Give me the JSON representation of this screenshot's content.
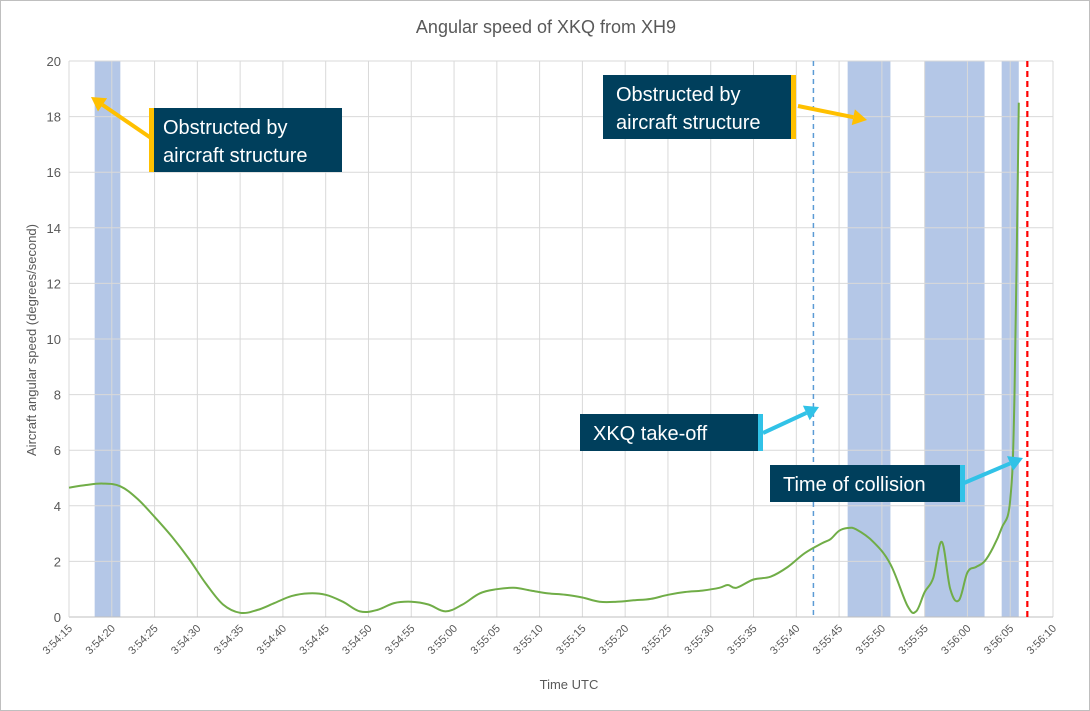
{
  "chart_data": {
    "type": "line",
    "title": "Angular speed of XKQ from XH9",
    "xlabel": "Time UTC",
    "ylabel": "Aircraft angular speed (degrees/second)",
    "x_ticks": [
      "3:54:15",
      "3:54:20",
      "3:54:25",
      "3:54:30",
      "3:54:35",
      "3:54:40",
      "3:54:45",
      "3:54:50",
      "3:54:55",
      "3:55:00",
      "3:55:05",
      "3:55:10",
      "3:55:15",
      "3:55:20",
      "3:55:25",
      "3:55:30",
      "3:55:35",
      "3:55:40",
      "3:55:45",
      "3:55:50",
      "3:55:55",
      "3:56:00",
      "3:56:05",
      "3:56:10"
    ],
    "xlim": [
      "3:54:15",
      "3:56:10"
    ],
    "ylim": [
      0,
      20
    ],
    "y_ticks": [
      0,
      2,
      4,
      6,
      8,
      10,
      12,
      14,
      16,
      18,
      20
    ],
    "grid": true,
    "series": [
      {
        "color": "#70ad47",
        "x": [
          "3:54:15",
          "3:54:17",
          "3:54:19",
          "3:54:21",
          "3:54:23",
          "3:54:25",
          "3:54:27",
          "3:54:29",
          "3:54:31",
          "3:54:33",
          "3:54:35",
          "3:54:37",
          "3:54:39",
          "3:54:41",
          "3:54:43",
          "3:54:45",
          "3:54:47",
          "3:54:49",
          "3:54:51",
          "3:54:53",
          "3:54:55",
          "3:54:57",
          "3:54:59",
          "3:55:01",
          "3:55:03",
          "3:55:05",
          "3:55:07",
          "3:55:09",
          "3:55:11",
          "3:55:13",
          "3:55:15",
          "3:55:17",
          "3:55:19",
          "3:55:21",
          "3:55:23",
          "3:55:25",
          "3:55:27",
          "3:55:29",
          "3:55:31",
          "3:55:32",
          "3:55:33",
          "3:55:35",
          "3:55:37",
          "3:55:39",
          "3:55:41",
          "3:55:43",
          "3:55:44",
          "3:55:45",
          "3:55:46",
          "3:55:47",
          "3:55:49",
          "3:55:51",
          "3:55:53",
          "3:55:54",
          "3:55:55",
          "3:55:56",
          "3:55:57",
          "3:55:58",
          "3:55:59",
          "3:56:00",
          "3:56:01",
          "3:56:02",
          "3:56:03",
          "3:56:04",
          "3:56:05",
          "3:56:05.5",
          "3:56:06"
        ],
        "y": [
          4.65,
          4.75,
          4.8,
          4.7,
          4.25,
          3.6,
          2.9,
          2.1,
          1.2,
          0.45,
          0.15,
          0.25,
          0.5,
          0.75,
          0.85,
          0.8,
          0.55,
          0.2,
          0.25,
          0.5,
          0.55,
          0.45,
          0.2,
          0.45,
          0.85,
          1.0,
          1.05,
          0.95,
          0.85,
          0.8,
          0.7,
          0.55,
          0.55,
          0.6,
          0.65,
          0.8,
          0.9,
          0.95,
          1.05,
          1.15,
          1.05,
          1.35,
          1.45,
          1.8,
          2.3,
          2.65,
          2.8,
          3.1,
          3.2,
          3.15,
          2.7,
          1.9,
          0.4,
          0.2,
          0.9,
          1.4,
          2.7,
          1.0,
          0.6,
          1.6,
          1.8,
          2.0,
          2.5,
          3.2,
          4.2,
          8.0,
          18.5
        ]
      }
    ],
    "bands": [
      {
        "label": "Obstructed by aircraft structure",
        "color": "#b4c7e7",
        "start": "3:54:18",
        "end": "3:54:21"
      },
      {
        "label": "Obstructed by aircraft structure",
        "color": "#b4c7e7",
        "start": "3:55:46",
        "end": "3:55:51"
      },
      {
        "label": "Obstructed by aircraft structure",
        "color": "#b4c7e7",
        "start": "3:55:55",
        "end": "3:56:02"
      },
      {
        "label": "Obstructed by aircraft structure",
        "color": "#b4c7e7",
        "start": "3:56:04",
        "end": "3:56:06"
      }
    ],
    "vlines": [
      {
        "label": "XKQ take-off",
        "x": "3:55:42",
        "color": "#5b9bd5",
        "style": "dashed"
      },
      {
        "label": "Time of collision",
        "x": "3:56:07",
        "color": "#ff0000",
        "style": "dashed"
      }
    ],
    "annotations": [
      {
        "text_lines": [
          "Obstructed by",
          "aircraft structure"
        ],
        "arrow_color": "#ffc000",
        "box_color": "#003f5c"
      },
      {
        "text_lines": [
          "Obstructed by",
          "aircraft structure"
        ],
        "arrow_color": "#ffc000",
        "box_color": "#003f5c"
      },
      {
        "text_lines": [
          "XKQ take-off"
        ],
        "arrow_color": "#31c2e7",
        "box_color": "#003f5c"
      },
      {
        "text_lines": [
          "Time of collision"
        ],
        "arrow_color": "#31c2e7",
        "box_color": "#003f5c"
      }
    ]
  }
}
